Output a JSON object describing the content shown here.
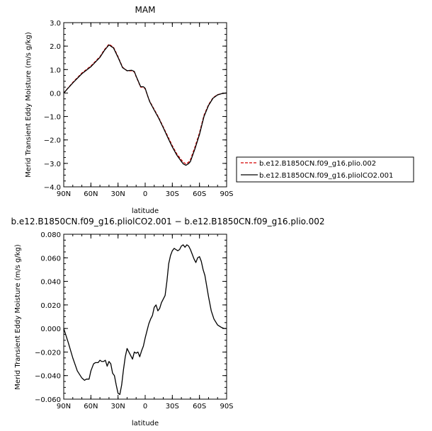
{
  "chart_data": [
    {
      "type": "line",
      "title": "MAM",
      "xlabel": "latitude",
      "ylabel": "Merid Transient Eddy Moisture (m/s g/kg)",
      "xlim": [
        90,
        -90
      ],
      "ylim": [
        -4.0,
        3.0
      ],
      "xticks": [
        90,
        60,
        30,
        0,
        -30,
        -60,
        -90
      ],
      "xtick_labels": [
        "90N",
        "60N",
        "30N",
        "0",
        "30S",
        "60S",
        "90S"
      ],
      "yticks": [
        3.0,
        2.0,
        1.0,
        0.0,
        -1.0,
        -2.0,
        -3.0,
        -4.0
      ],
      "ytick_labels": [
        "3.0",
        "2.0",
        "1.0",
        "0.0",
        "−1.0",
        "−2.0",
        "−3.0",
        "−4.0"
      ],
      "grid": false,
      "legend": "outside-right",
      "x": [
        90,
        80,
        70,
        60,
        50,
        45,
        40,
        35,
        30,
        25,
        20,
        15,
        12,
        10,
        5,
        2,
        0,
        -3,
        -5,
        -10,
        -15,
        -20,
        -25,
        -30,
        -35,
        -40,
        -42,
        -45,
        -48,
        -50,
        -55,
        -60,
        -65,
        -70,
        -75,
        -80,
        -85,
        -90
      ],
      "series": [
        {
          "name": "b.e12.B1850CN.f09_g16.plio.002",
          "color": "#d40000",
          "dash": "dashed",
          "values": [
            0.0,
            0.45,
            0.85,
            1.15,
            1.55,
            1.85,
            2.08,
            1.95,
            1.55,
            1.1,
            0.95,
            0.95,
            0.9,
            0.7,
            0.25,
            0.25,
            0.18,
            -0.15,
            -0.35,
            -0.7,
            -1.05,
            -1.45,
            -1.85,
            -2.25,
            -2.6,
            -2.85,
            -2.95,
            -3.02,
            -2.95,
            -2.85,
            -2.3,
            -1.7,
            -0.95,
            -0.5,
            -0.2,
            -0.07,
            -0.02,
            0.0
          ]
        },
        {
          "name": "b.e12.B1850CN.f09_g16.pliolCO2.001",
          "color": "#000000",
          "dash": "solid",
          "values": [
            0.0,
            0.43,
            0.82,
            1.12,
            1.52,
            1.82,
            2.05,
            1.92,
            1.52,
            1.08,
            0.95,
            0.97,
            0.92,
            0.72,
            0.27,
            0.27,
            0.2,
            -0.15,
            -0.37,
            -0.73,
            -1.08,
            -1.48,
            -1.9,
            -2.3,
            -2.65,
            -2.92,
            -3.02,
            -3.08,
            -3.01,
            -2.92,
            -2.38,
            -1.77,
            -1.0,
            -0.53,
            -0.22,
            -0.08,
            -0.02,
            0.0
          ]
        }
      ]
    },
    {
      "type": "line",
      "title": "b.e12.B1850CN.f09_g16.pliolCO2.001 − b.e12.B1850CN.f09_g16.plio.002",
      "xlabel": "latitude",
      "ylabel": "Merid Transient Eddy Moisture (m/s g/kg)",
      "xlim": [
        90,
        -90
      ],
      "ylim": [
        -0.06,
        0.08
      ],
      "xticks": [
        90,
        60,
        30,
        0,
        -30,
        -60,
        -90
      ],
      "xtick_labels": [
        "90N",
        "60N",
        "30N",
        "0",
        "30S",
        "60S",
        "90S"
      ],
      "yticks": [
        0.08,
        0.06,
        0.04,
        0.02,
        0.0,
        -0.02,
        -0.04,
        -0.06
      ],
      "ytick_labels": [
        "0.080",
        "0.060",
        "0.040",
        "0.020",
        "0.000",
        "−0.020",
        "−0.040",
        "−0.060"
      ],
      "grid": false,
      "x": [
        90,
        85,
        80,
        75,
        70,
        67,
        65,
        62,
        60,
        57,
        55,
        52,
        50,
        48,
        46,
        44,
        42,
        40,
        38,
        36,
        34,
        32,
        30,
        28,
        26,
        24,
        22,
        20,
        18,
        16,
        14,
        12,
        10,
        8,
        6,
        4,
        2,
        0,
        -2,
        -4,
        -6,
        -8,
        -10,
        -12,
        -14,
        -16,
        -18,
        -20,
        -22,
        -24,
        -26,
        -28,
        -30,
        -32,
        -34,
        -36,
        -38,
        -40,
        -42,
        -44,
        -46,
        -48,
        -50,
        -52,
        -54,
        -56,
        -58,
        -60,
        -62,
        -64,
        -66,
        -68,
        -70,
        -73,
        -76,
        -80,
        -84,
        -87,
        -90
      ],
      "series": [
        {
          "name": "",
          "color": "#000000",
          "dash": "solid",
          "values": [
            0.0,
            -0.012,
            -0.025,
            -0.036,
            -0.042,
            -0.044,
            -0.043,
            -0.043,
            -0.036,
            -0.03,
            -0.029,
            -0.029,
            -0.027,
            -0.028,
            -0.028,
            -0.027,
            -0.032,
            -0.028,
            -0.03,
            -0.038,
            -0.04,
            -0.048,
            -0.055,
            -0.056,
            -0.048,
            -0.035,
            -0.024,
            -0.017,
            -0.02,
            -0.023,
            -0.026,
            -0.02,
            -0.021,
            -0.02,
            -0.024,
            -0.019,
            -0.015,
            -0.008,
            -0.002,
            0.004,
            0.008,
            0.011,
            0.018,
            0.02,
            0.015,
            0.017,
            0.022,
            0.025,
            0.028,
            0.04,
            0.055,
            0.062,
            0.066,
            0.068,
            0.067,
            0.066,
            0.067,
            0.07,
            0.071,
            0.069,
            0.071,
            0.07,
            0.067,
            0.063,
            0.059,
            0.056,
            0.06,
            0.061,
            0.057,
            0.05,
            0.045,
            0.036,
            0.027,
            0.015,
            0.008,
            0.003,
            0.001,
            0.0,
            0.0
          ]
        }
      ]
    }
  ]
}
